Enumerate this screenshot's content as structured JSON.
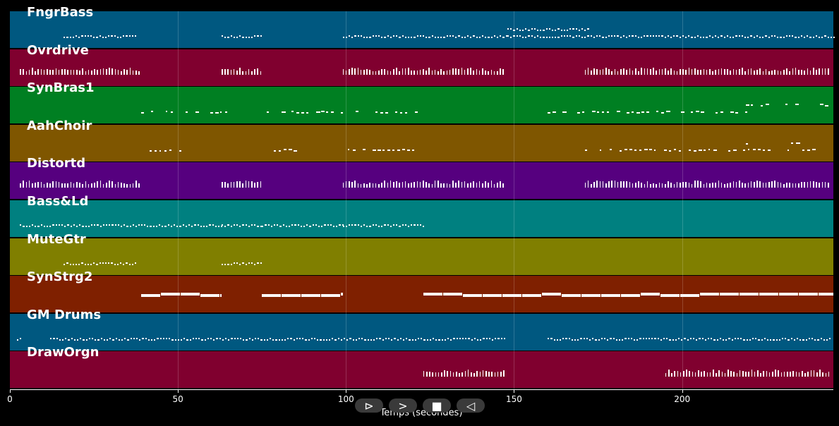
{
  "x_axis": {
    "label": "Temps (secondes)",
    "min": 0,
    "max": 245,
    "ticks": [
      0,
      50,
      100,
      150,
      200
    ]
  },
  "tracks": [
    {
      "name": "FngrBass",
      "color": "#005880",
      "pattern": "dots",
      "segments": [
        [
          16,
          38
        ],
        [
          63,
          75
        ],
        [
          99,
          148
        ],
        [
          148,
          245
        ]
      ],
      "extra": [
        [
          148,
          172
        ]
      ]
    },
    {
      "name": "Ovrdrive",
      "color": "#80002f",
      "pattern": "ticks",
      "segments": [
        [
          3,
          39
        ],
        [
          63,
          75
        ],
        [
          99,
          147
        ],
        [
          171,
          244
        ]
      ]
    },
    {
      "name": "SynBras1",
      "color": "#007f22",
      "pattern": "sparse",
      "segments": [
        [
          39,
          64
        ],
        [
          75,
          122
        ],
        [
          160,
          219
        ]
      ],
      "extra": [
        [
          219,
          243
        ]
      ]
    },
    {
      "name": "AahChoir",
      "color": "#7f5600",
      "pattern": "sparse2",
      "segments": [
        [
          40,
          51
        ],
        [
          63,
          64
        ],
        [
          77,
          87
        ],
        [
          99,
          122
        ],
        [
          171,
          243
        ]
      ],
      "extra": [
        [
          219,
          222
        ],
        [
          231,
          234
        ]
      ]
    },
    {
      "name": "Distortd",
      "color": "#56007f",
      "pattern": "ticks",
      "segments": [
        [
          3,
          39
        ],
        [
          63,
          75
        ],
        [
          99,
          147
        ],
        [
          171,
          244
        ]
      ]
    },
    {
      "name": "Bass&Ld",
      "color": "#008080",
      "pattern": "dots",
      "segments": [
        [
          3,
          39
        ],
        [
          39,
          63
        ],
        [
          63,
          75
        ],
        [
          75,
          99
        ],
        [
          99,
          123
        ]
      ]
    },
    {
      "name": "MuteGtr",
      "color": "#807f00",
      "pattern": "dots",
      "segments": [
        [
          16,
          38
        ],
        [
          63,
          75
        ]
      ]
    },
    {
      "name": "SynStrg2",
      "color": "#7f2000",
      "pattern": "blocks",
      "segments": [
        [
          39,
          63
        ],
        [
          75,
          99
        ],
        [
          123,
          245
        ]
      ]
    },
    {
      "name": "GM Drums",
      "color": "#005880",
      "pattern": "dots",
      "segments": [
        [
          2,
          3
        ],
        [
          12,
          147
        ],
        [
          160,
          244
        ]
      ]
    },
    {
      "name": "DrawOrgn",
      "color": "#80002f",
      "pattern": "ticks",
      "segments": [
        [
          123,
          147
        ],
        [
          195,
          244
        ]
      ]
    }
  ],
  "controls": [
    {
      "name": "play-forward-button",
      "glyph": "⊳"
    },
    {
      "name": "fast-forward-button",
      "glyph": ">"
    },
    {
      "name": "stop-button",
      "glyph": "■"
    },
    {
      "name": "rewind-button",
      "glyph": "◁"
    }
  ]
}
